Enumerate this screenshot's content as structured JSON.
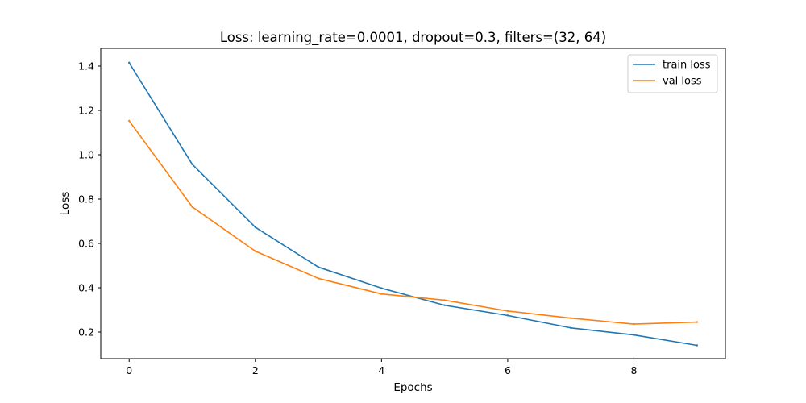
{
  "chart_data": {
    "type": "line",
    "title": "Loss: learning_rate=0.0001, dropout=0.3, filters=(32, 64)",
    "xlabel": "Epochs",
    "ylabel": "Loss",
    "x": [
      0,
      1,
      2,
      3,
      4,
      5,
      6,
      7,
      8,
      9
    ],
    "xlim": [
      -0.45,
      9.45
    ],
    "ylim": [
      0.08,
      1.48
    ],
    "xticks": [
      0,
      2,
      4,
      6,
      8
    ],
    "xtick_labels": [
      "0",
      "2",
      "4",
      "6",
      "8"
    ],
    "yticks": [
      0.2,
      0.4,
      0.6,
      0.8,
      1.0,
      1.2,
      1.4
    ],
    "ytick_labels": [
      "0.2",
      "0.4",
      "0.6",
      "0.8",
      "1.0",
      "1.2",
      "1.4"
    ],
    "grid": false,
    "legend_position": "top-right",
    "series": [
      {
        "name": "train loss",
        "color": "#1f77b4",
        "values": [
          1.415,
          0.957,
          0.673,
          0.493,
          0.398,
          0.321,
          0.275,
          0.219,
          0.187,
          0.14
        ]
      },
      {
        "name": "val loss",
        "color": "#ff7f0e",
        "values": [
          1.153,
          0.765,
          0.565,
          0.442,
          0.372,
          0.344,
          0.295,
          0.263,
          0.236,
          0.245
        ]
      }
    ]
  }
}
